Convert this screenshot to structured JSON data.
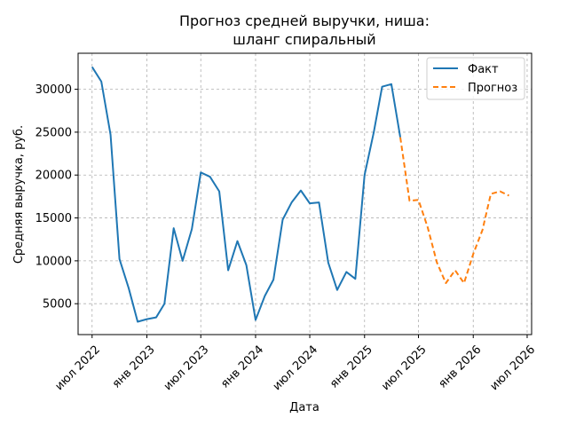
{
  "chart_data": {
    "type": "line",
    "title_lines": [
      "Прогноз средней выручки, ниша:",
      "шланг спиральный"
    ],
    "xlabel": "Дата",
    "ylabel": "Средняя выручка, руб.",
    "x_ticks": [
      "июл 2022",
      "янв 2023",
      "июл 2023",
      "янв 2024",
      "июл 2024",
      "янв 2025",
      "июл 2025",
      "янв 2026",
      "июл 2026"
    ],
    "y_ticks": [
      5000,
      10000,
      15000,
      20000,
      25000,
      30000
    ],
    "ylim": [
      1400,
      34200
    ],
    "xlim": [
      "2022-05-15",
      "2026-07-16"
    ],
    "grid": true,
    "legend_position": "top-right",
    "series": [
      {
        "name": "Факт",
        "color": "#1f77b4",
        "style": "solid",
        "x": [
          "2022-07-01",
          "2022-08-01",
          "2022-09-01",
          "2022-10-01",
          "2022-11-01",
          "2022-12-01",
          "2023-01-01",
          "2023-02-01",
          "2023-03-01",
          "2023-04-01",
          "2023-05-01",
          "2023-06-01",
          "2023-07-01",
          "2023-08-01",
          "2023-09-01",
          "2023-10-01",
          "2023-11-01",
          "2023-12-01",
          "2024-01-01",
          "2024-02-01",
          "2024-03-01",
          "2024-04-01",
          "2024-05-01",
          "2024-06-01",
          "2024-07-01",
          "2024-08-01",
          "2024-09-01",
          "2024-10-01",
          "2024-11-01",
          "2024-12-01",
          "2025-01-01",
          "2025-02-01",
          "2025-03-01",
          "2025-04-01",
          "2025-05-01"
        ],
        "y": [
          32600,
          30900,
          24700,
          10200,
          6800,
          2900,
          3200,
          3400,
          5000,
          13800,
          10000,
          13700,
          20300,
          19800,
          18100,
          8900,
          12300,
          9500,
          3100,
          5900,
          7800,
          14800,
          16800,
          18200,
          16700,
          16800,
          9800,
          6600,
          8700,
          7900,
          20000,
          25000,
          30300,
          30600,
          24400
        ]
      },
      {
        "name": "Прогноз",
        "color": "#ff7f0e",
        "style": "dashed",
        "x": [
          "2025-05-01",
          "2025-06-01",
          "2025-07-01",
          "2025-08-01",
          "2025-09-01",
          "2025-10-01",
          "2025-11-01",
          "2025-12-01",
          "2026-01-01",
          "2026-02-01",
          "2026-03-01",
          "2026-04-01",
          "2026-05-01"
        ],
        "y": [
          24400,
          17000,
          17100,
          13900,
          9800,
          7400,
          8900,
          7400,
          10800,
          13600,
          17800,
          18100,
          17600
        ]
      }
    ]
  }
}
